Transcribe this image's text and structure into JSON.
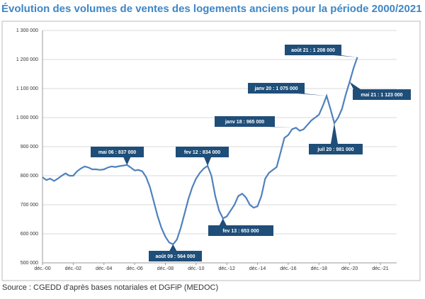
{
  "chart_data": {
    "type": "line",
    "title": "Évolution des volumes de ventes des logements anciens pour la période 2000/2021",
    "source": "Source : CGEDD d'après bases notariales et DGFiP (MEDOC)",
    "categories": [
      "déc.-00",
      null,
      null,
      null,
      null,
      null,
      null,
      null,
      "déc.-02",
      null,
      null,
      null,
      null,
      null,
      null,
      null,
      "déc.-04",
      null,
      null,
      null,
      null,
      null,
      null,
      null,
      "déc.-06",
      null,
      null,
      null,
      null,
      null,
      null,
      null,
      "déc.-08",
      null,
      null,
      null,
      null,
      null,
      null,
      null,
      "déc.-10",
      null,
      null,
      null,
      null,
      null,
      null,
      null,
      "déc.-12",
      null,
      null,
      null,
      null,
      null,
      null,
      null,
      "déc.-14",
      null,
      null,
      null,
      null,
      null,
      null,
      null,
      "déc.-16",
      null,
      null,
      null,
      null,
      null,
      null,
      null,
      "déc.-18",
      null,
      null,
      null,
      null,
      null,
      null,
      null,
      "déc.-20",
      null,
      null,
      null,
      null,
      null,
      null,
      null,
      "déc.-21"
    ],
    "series": [
      {
        "color": "#4f81bd",
        "values": [
          795000,
          785000,
          790000,
          782000,
          790000,
          800000,
          808000,
          800000,
          800000,
          815000,
          825000,
          832000,
          828000,
          822000,
          822000,
          820000,
          822000,
          828000,
          832000,
          830000,
          833000,
          835000,
          837000,
          828000,
          818000,
          820000,
          815000,
          795000,
          760000,
          710000,
          660000,
          620000,
          590000,
          570000,
          564000,
          580000,
          620000,
          670000,
          720000,
          760000,
          790000,
          810000,
          825000,
          834000,
          800000,
          730000,
          680000,
          653000,
          660000,
          680000,
          700000,
          730000,
          738000,
          725000,
          700000,
          690000,
          695000,
          730000,
          790000,
          810000,
          820000,
          830000,
          880000,
          930000,
          940000,
          960000,
          965000,
          955000,
          960000,
          975000,
          990000,
          1000000,
          1010000,
          1040000,
          1075000,
          1030000,
          981000,
          1000000,
          1030000,
          1080000,
          1123000,
          1170000,
          1208000,
          null,
          null,
          null,
          null,
          null,
          null
        ]
      }
    ],
    "ylim": [
      500000,
      1300000
    ],
    "yticks": [
      {
        "value": 500000,
        "label": "500 000"
      },
      {
        "value": 600000,
        "label": "600 000"
      },
      {
        "value": 700000,
        "label": "700 000"
      },
      {
        "value": 800000,
        "label": "800 000"
      },
      {
        "value": 900000,
        "label": "900 000"
      },
      {
        "value": 1000000,
        "label": "1 000 000"
      },
      {
        "value": 1100000,
        "label": "1 100 000"
      },
      {
        "value": 1200000,
        "label": "1 200 000"
      },
      {
        "value": 1300000,
        "label": "1 300 000"
      }
    ],
    "grid": true,
    "annotations": [
      "août 21 : 1 208 000",
      "mai 21 : 1 123 000",
      "janv 20 : 1 075 000",
      "janv 18 : 965 000",
      "juil 20 : 981 000",
      "mai 06 : 837 000",
      "fev 12 : 834 000",
      "fev 13 : 653 000",
      "août 09 : 564 000"
    ]
  }
}
